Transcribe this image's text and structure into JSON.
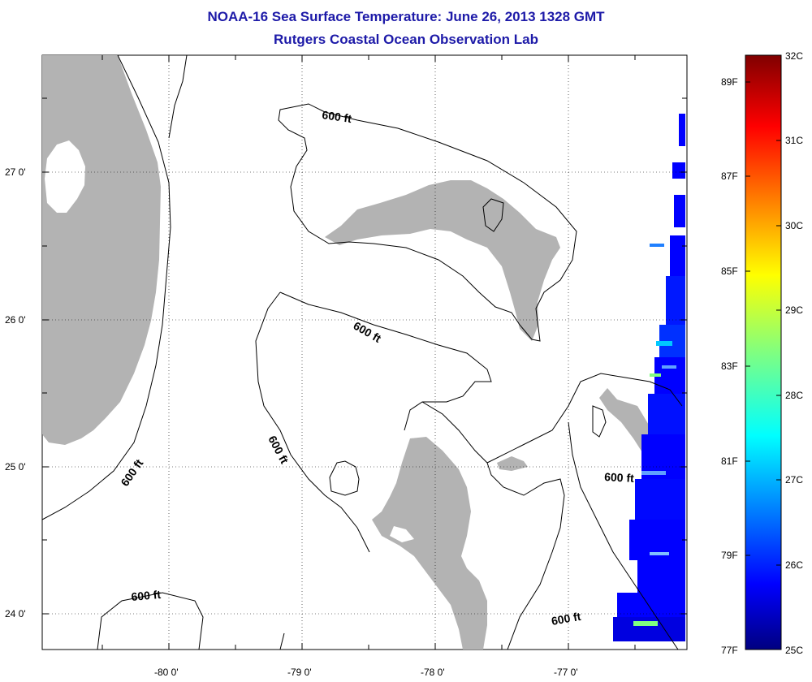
{
  "title_line1": "NOAA-16 Sea Surface Temperature:  June 26, 2013 1328 GMT",
  "title_line2": "Rutgers Coastal Ocean Observation Lab",
  "colors": {
    "land": "#b3b3b3",
    "title": "#1d1aa8",
    "contour": "#000000",
    "colormap": [
      "#000080",
      "#0000ff",
      "#0080ff",
      "#00ffff",
      "#80ff80",
      "#ffff00",
      "#ff8000",
      "#ff0000",
      "#800000"
    ]
  },
  "chart_data": {
    "type": "heatmap",
    "title": "NOAA-16 Sea Surface Temperature:  June 26, 2013 1328 GMT",
    "subtitle": "Rutgers Coastal Ocean Observation Lab",
    "x_ticks": [
      "-80 0'",
      "-79 0'",
      "-78 0'",
      "-77 0'"
    ],
    "y_ticks": [
      "27 0'",
      "26 0'",
      "25 0'",
      "24 0'"
    ],
    "xlim": [
      -80.95,
      -76.2
    ],
    "ylim": [
      23.75,
      27.78
    ],
    "contour_labels": [
      "600 ft",
      "600 ft",
      "600 ft",
      "600 ft",
      "600 ft",
      "600 ft"
    ],
    "colorbar": {
      "celsius_labels": [
        "32C",
        "31C",
        "30C",
        "29C",
        "28C",
        "27C",
        "26C",
        "25C"
      ],
      "fahrenheit_labels": [
        "89F",
        "87F",
        "85F",
        "83F",
        "81F",
        "79F",
        "77F"
      ],
      "range_c": [
        25,
        32
      ]
    },
    "sst_swath_temp_c": 25.7
  }
}
